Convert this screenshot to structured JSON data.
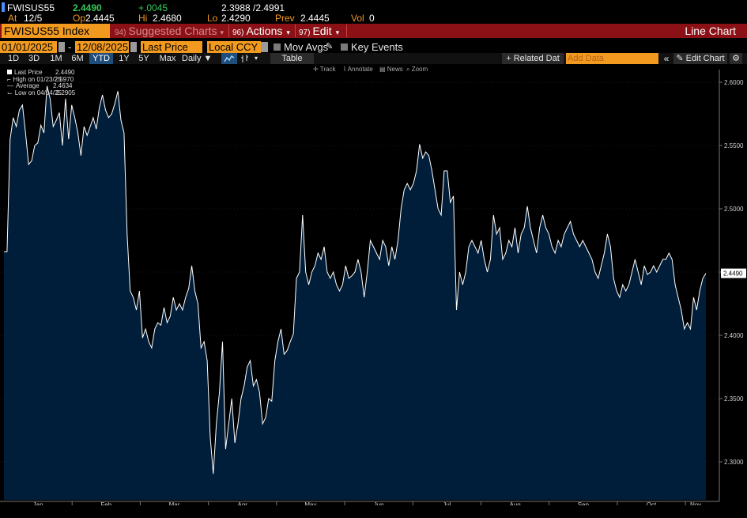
{
  "quote": {
    "ticker": "FWISUS55",
    "last": "2.4490",
    "change": "+.0045",
    "bid_ask": "2.3988 /2.4991",
    "at_label": "At",
    "at_value": "12/5",
    "op_label": "Op",
    "op_value": "2.4445",
    "hi_label": "Hi",
    "hi_value": "2.4680",
    "lo_label": "Lo",
    "lo_value": "2.4290",
    "prev_label": "Prev",
    "prev_value": "2.4445",
    "vol_label": "Vol",
    "vol_value": "0"
  },
  "command_bar": {
    "security": "FWISUS55 Index",
    "suggested_num": "94)",
    "suggested_label": "Suggested Charts",
    "actions_num": "96)",
    "actions_label": "Actions",
    "edit_num": "97)",
    "edit_label": "Edit",
    "chart_type": "Line Chart"
  },
  "controls": {
    "start_date": "01/01/2025",
    "end_date": "12/08/2025",
    "field": "Last Price",
    "currency": "Local CCY",
    "mov_avgs": "Mov Avgs",
    "key_events": "Key Events",
    "periods": [
      "1D",
      "3D",
      "1M",
      "6M",
      "YTD",
      "1Y",
      "5Y",
      "Max"
    ],
    "active_period": "YTD",
    "frequency": "Daily",
    "table": "Table",
    "related_data": "Related Dat",
    "add_data_placeholder": "Add Data",
    "edit_chart": "Edit Chart"
  },
  "toolbar": {
    "track": "Track",
    "annotate": "Annotate",
    "news": "News",
    "zoom": "Zoom"
  },
  "legend": {
    "last_price": "Last Price",
    "last_price_value": "2.4490",
    "high": "High on 01/23/25",
    "high_value": "2.5970",
    "average": "Average",
    "average_value": "2.4634",
    "low": "Low on 04/04/25",
    "low_value": "2.2905"
  },
  "colors": {
    "line": "#ffffff",
    "fill": "#001e3a",
    "accent": "#f29a1f",
    "command_bar": "#8b1116"
  },
  "chart_data": {
    "type": "area",
    "title": "",
    "xlabel": "2025",
    "ylabel": "",
    "ylim": [
      2.27,
      2.61
    ],
    "yticks": [
      "2.3000",
      "2.3500",
      "2.4000",
      "2.4500",
      "2.5000",
      "2.5500",
      "2.6000"
    ],
    "month_labels": [
      "Jan",
      "Feb",
      "Mar",
      "Apr",
      "May",
      "Jun",
      "Jul",
      "Aug",
      "Sep",
      "Oct",
      "Nov"
    ],
    "last_value_label": "2.4490",
    "series": [
      {
        "values": [
          2.466,
          2.466,
          2.555,
          2.572,
          2.565,
          2.578,
          2.582,
          2.56,
          2.535,
          2.538,
          2.55,
          2.552,
          2.566,
          2.56,
          2.597,
          2.587,
          2.565,
          2.57,
          2.576,
          2.55,
          2.587,
          2.555,
          2.582,
          2.572,
          2.56,
          2.542,
          2.565,
          2.558,
          2.565,
          2.572,
          2.563,
          2.58,
          2.59,
          2.578,
          2.572,
          2.575,
          2.583,
          2.593,
          2.57,
          2.56,
          2.48,
          2.435,
          2.43,
          2.42,
          2.435,
          2.398,
          2.405,
          2.395,
          2.39,
          2.405,
          2.41,
          2.408,
          2.422,
          2.41,
          2.415,
          2.43,
          2.42,
          2.425,
          2.42,
          2.43,
          2.437,
          2.455,
          2.435,
          2.425,
          2.39,
          2.395,
          2.38,
          2.32,
          2.2905,
          2.33,
          2.355,
          2.395,
          2.31,
          2.33,
          2.35,
          2.315,
          2.33,
          2.35,
          2.36,
          2.375,
          2.38,
          2.36,
          2.365,
          2.355,
          2.33,
          2.335,
          2.35,
          2.348,
          2.38,
          2.395,
          2.405,
          2.385,
          2.388,
          2.395,
          2.401,
          2.445,
          2.45,
          2.495,
          2.45,
          2.44,
          2.45,
          2.455,
          2.465,
          2.46,
          2.47,
          2.45,
          2.445,
          2.45,
          2.44,
          2.435,
          2.44,
          2.455,
          2.445,
          2.447,
          2.45,
          2.46,
          2.45,
          2.43,
          2.45,
          2.475,
          2.47,
          2.465,
          2.46,
          2.475,
          2.47,
          2.455,
          2.47,
          2.46,
          2.475,
          2.5,
          2.515,
          2.52,
          2.515,
          2.52,
          2.53,
          2.551,
          2.54,
          2.545,
          2.542,
          2.53,
          2.515,
          2.5,
          2.495,
          2.53,
          2.53,
          2.505,
          2.51,
          2.42,
          2.45,
          2.44,
          2.45,
          2.47,
          2.475,
          2.47,
          2.465,
          2.475,
          2.46,
          2.45,
          2.46,
          2.495,
          2.48,
          2.485,
          2.46,
          2.465,
          2.475,
          2.47,
          2.485,
          2.465,
          2.48,
          2.485,
          2.502,
          2.485,
          2.475,
          2.465,
          2.485,
          2.495,
          2.485,
          2.48,
          2.47,
          2.465,
          2.475,
          2.47,
          2.48,
          2.485,
          2.49,
          2.48,
          2.475,
          2.47,
          2.475,
          2.47,
          2.465,
          2.46,
          2.45,
          2.445,
          2.455,
          2.465,
          2.48,
          2.47,
          2.445,
          2.435,
          2.43,
          2.44,
          2.435,
          2.44,
          2.45,
          2.46,
          2.45,
          2.44,
          2.455,
          2.448,
          2.45,
          2.455,
          2.45,
          2.455,
          2.46,
          2.46,
          2.465,
          2.46,
          2.44,
          2.43,
          2.42,
          2.405,
          2.41,
          2.405,
          2.43,
          2.42,
          2.435,
          2.445,
          2.449
        ]
      }
    ]
  }
}
